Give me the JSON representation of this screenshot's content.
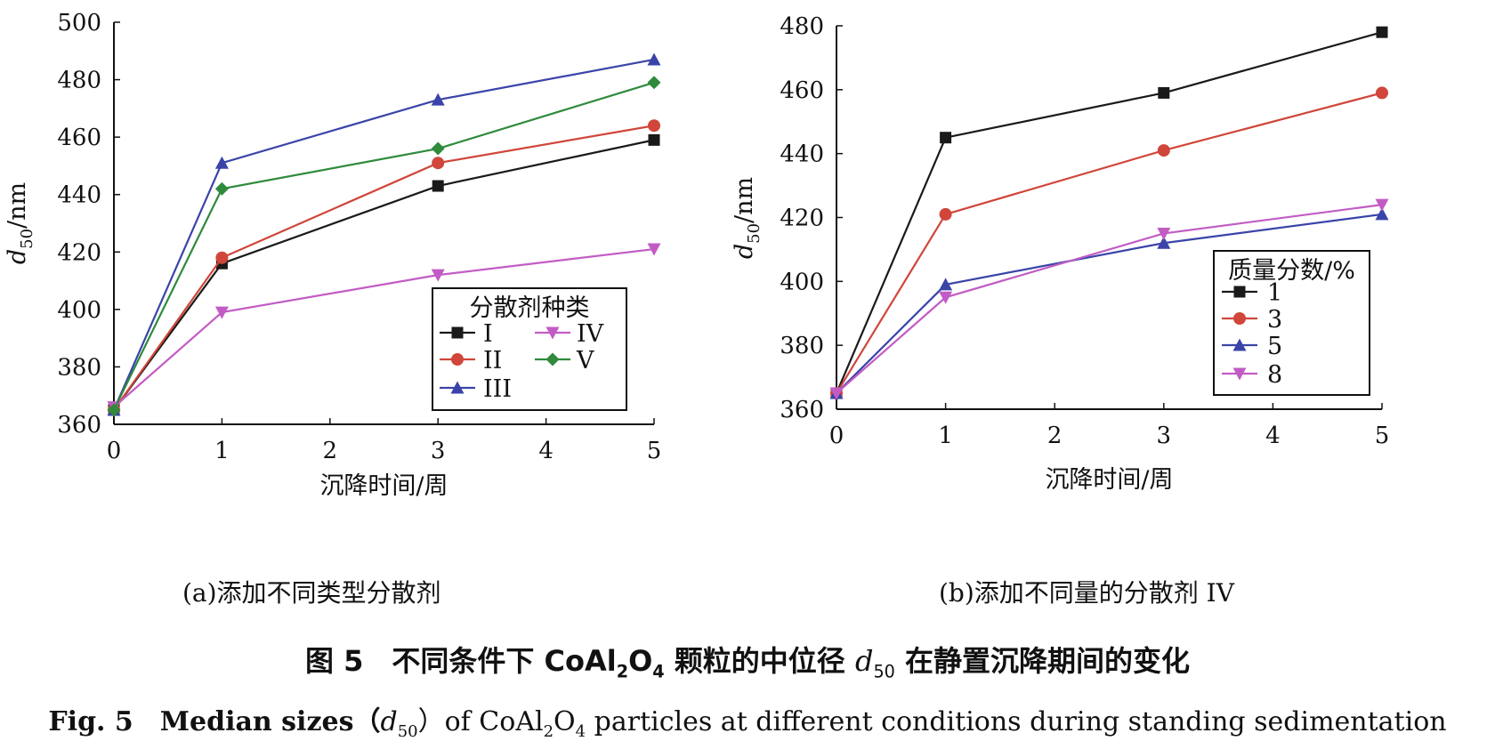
{
  "chart_data": [
    {
      "type": "line",
      "panel": "a",
      "caption": "(a)添加不同类型分散剂",
      "xlabel": "沉降时间/周",
      "ylabel_main": "d",
      "ylabel_sub": "50",
      "ylabel_unit": "/nm",
      "x_ticks": [
        "0",
        "1",
        "2",
        "3",
        "4",
        "5"
      ],
      "y_ticks": [
        "360",
        "380",
        "400",
        "420",
        "440",
        "460",
        "480",
        "500"
      ],
      "xlim": [
        0,
        5
      ],
      "ylim": [
        360,
        500
      ],
      "legend_title": "分散剂种类",
      "legend_position": "bottom-right",
      "series": [
        {
          "name": "I",
          "x": [
            0,
            1,
            3,
            5
          ],
          "y": [
            365,
            416,
            443,
            459
          ],
          "color": "#1a1a1a",
          "marker": "square"
        },
        {
          "name": "II",
          "x": [
            0,
            1,
            3,
            5
          ],
          "y": [
            365,
            418,
            451,
            464
          ],
          "color": "#d0463a",
          "marker": "circle"
        },
        {
          "name": "III",
          "x": [
            0,
            1,
            3,
            5
          ],
          "y": [
            365,
            451,
            473,
            487
          ],
          "color": "#3a44a8",
          "marker": "triangle-up"
        },
        {
          "name": "IV",
          "x": [
            0,
            1,
            3,
            5
          ],
          "y": [
            366,
            399,
            412,
            421
          ],
          "color": "#c25cc4",
          "marker": "triangle-down"
        },
        {
          "name": "V",
          "x": [
            0,
            1,
            3,
            5
          ],
          "y": [
            365,
            442,
            456,
            479
          ],
          "color": "#2f8a3c",
          "marker": "diamond"
        }
      ]
    },
    {
      "type": "line",
      "panel": "b",
      "caption": "(b)添加不同量的分散剂 IV",
      "xlabel": "沉降时间/周",
      "ylabel_main": "d",
      "ylabel_sub": "50",
      "ylabel_unit": "/nm",
      "x_ticks": [
        "0",
        "1",
        "2",
        "3",
        "4",
        "5"
      ],
      "y_ticks": [
        "360",
        "380",
        "400",
        "420",
        "440",
        "460",
        "480"
      ],
      "xlim": [
        0,
        5
      ],
      "ylim": [
        360,
        480
      ],
      "legend_title": "质量分数/%",
      "legend_position": "right",
      "series": [
        {
          "name": "1",
          "x": [
            0,
            1,
            3,
            5
          ],
          "y": [
            365,
            445,
            459,
            478
          ],
          "color": "#1a1a1a",
          "marker": "square"
        },
        {
          "name": "3",
          "x": [
            0,
            1,
            3,
            5
          ],
          "y": [
            365,
            421,
            441,
            459
          ],
          "color": "#d0463a",
          "marker": "circle"
        },
        {
          "name": "5",
          "x": [
            0,
            1,
            3,
            5
          ],
          "y": [
            365,
            399,
            412,
            421
          ],
          "color": "#3a44a8",
          "marker": "triangle-up"
        },
        {
          "name": "8",
          "x": [
            0,
            1,
            3,
            5
          ],
          "y": [
            365,
            395,
            415,
            424
          ],
          "color": "#c25cc4",
          "marker": "triangle-down"
        }
      ]
    }
  ],
  "figure_caption": {
    "cn_prefix": "图 5　不同条件下 CoAl",
    "cn_sub1": "2",
    "cn_mid1": "O",
    "cn_sub2": "4",
    "cn_mid2": " 颗粒的中位径 ",
    "cn_d": "d",
    "cn_sub3": "50",
    "cn_suffix": " 在静置沉降期间的变化",
    "en_label": "Fig. 5 Median sizes（",
    "en_d": "d",
    "en_sub1": "50",
    "en_mid": "）of CoAl",
    "en_sub2": "2",
    "en_mid2": "O",
    "en_sub3": "4",
    "en_suffix": " particles at different conditions during standing sedimentation"
  }
}
